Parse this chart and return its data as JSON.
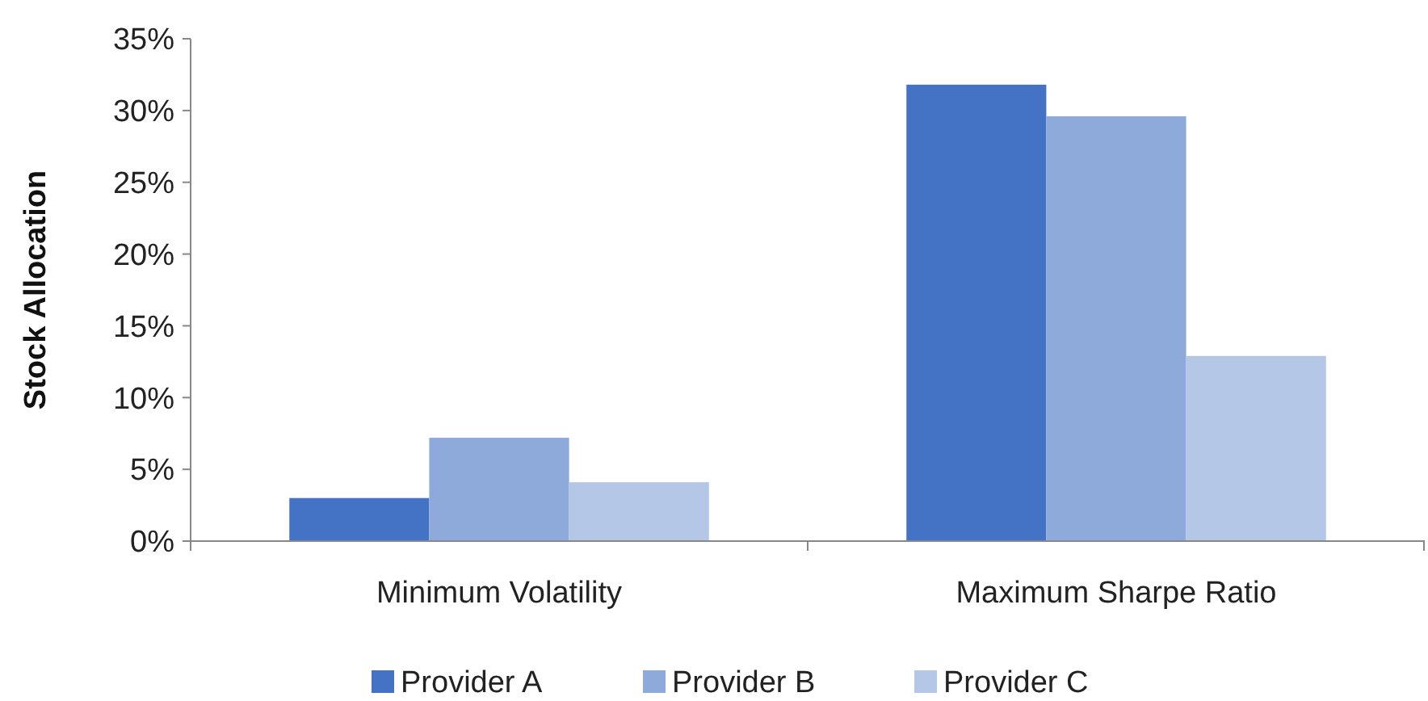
{
  "chart_data": {
    "type": "bar",
    "ylabel": "Stock Allocation",
    "categories": [
      "Minimum Volatility",
      "Maximum Sharpe Ratio"
    ],
    "series": [
      {
        "name": "Provider A",
        "color": "#4472c4",
        "values": [
          3.0,
          31.8
        ]
      },
      {
        "name": "Provider B",
        "color": "#8eaadb",
        "values": [
          7.2,
          29.6
        ]
      },
      {
        "name": "Provider C",
        "color": "#b4c7e7",
        "values": [
          4.1,
          12.9
        ]
      }
    ],
    "ylim": [
      0,
      35
    ],
    "yticks": [
      {
        "value": 0,
        "label": "0%"
      },
      {
        "value": 5,
        "label": "5%"
      },
      {
        "value": 10,
        "label": "10%"
      },
      {
        "value": 15,
        "label": "15%"
      },
      {
        "value": 20,
        "label": "20%"
      },
      {
        "value": 25,
        "label": "25%"
      },
      {
        "value": 30,
        "label": "30%"
      },
      {
        "value": 35,
        "label": "35%"
      }
    ],
    "grid": false,
    "legend": "bottom"
  }
}
